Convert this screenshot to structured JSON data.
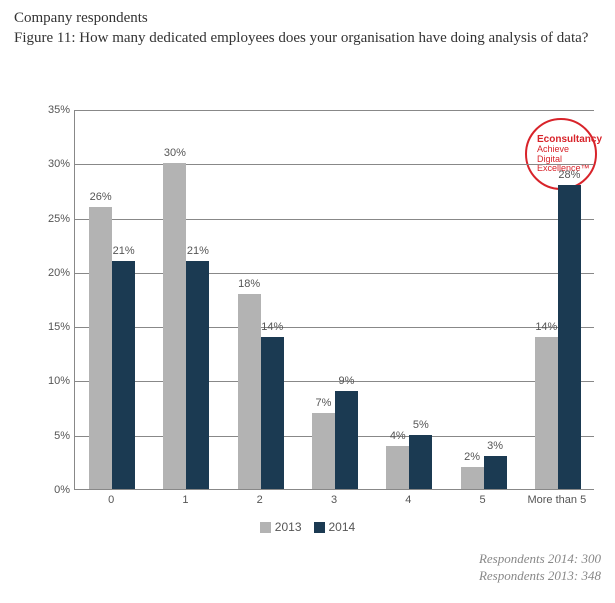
{
  "header": {
    "suptitle": "Company respondents",
    "title": "Figure 11: How many dedicated employees does your organisation have doing analysis of data?"
  },
  "badge": {
    "line1": "Econsultancy",
    "line2": "Achieve",
    "line3": "Digital",
    "line4": "Excellence™"
  },
  "chart": {
    "type": "bar",
    "categories": [
      "0",
      "1",
      "2",
      "3",
      "4",
      "5",
      "More than 5"
    ],
    "series": [
      {
        "name": "2013",
        "color": "#b3b3b3",
        "values": [
          26,
          30,
          18,
          7,
          4,
          2,
          14
        ]
      },
      {
        "name": "2014",
        "color": "#1b3a52",
        "values": [
          21,
          21,
          14,
          9,
          5,
          3,
          28
        ]
      }
    ],
    "ylim": [
      0,
      35
    ],
    "ytick_step": 5,
    "y_suffix": "%",
    "grid_color": "#888888",
    "label_fontsize": 11,
    "bar_group_width": 0.62
  },
  "legend": {
    "items": [
      {
        "label": "2013",
        "color": "#b3b3b3"
      },
      {
        "label": "2014",
        "color": "#1b3a52"
      }
    ]
  },
  "footer": {
    "line1": "Respondents 2014: 300",
    "line2": "Respondents 2013: 348"
  }
}
